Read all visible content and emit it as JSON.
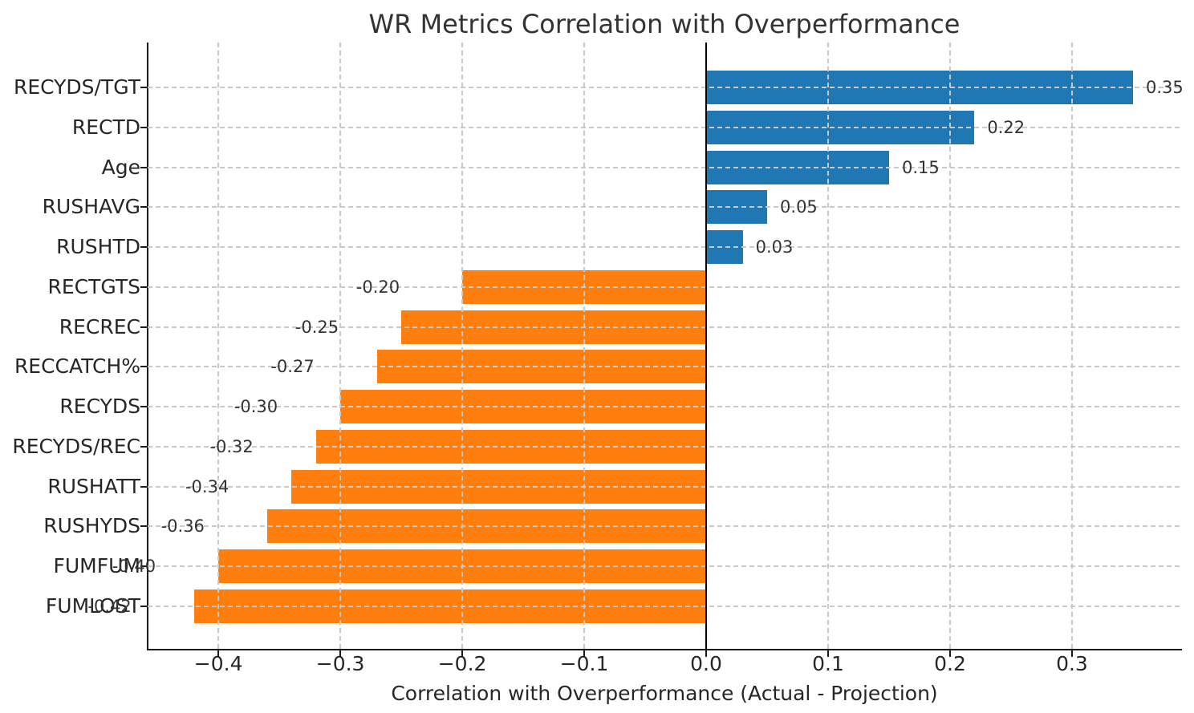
{
  "chart_data": {
    "type": "bar",
    "orientation": "horizontal",
    "title": "WR Metrics Correlation with Overperformance",
    "xlabel": "Correlation with Overperformance (Actual - Projection)",
    "ylabel": "",
    "categories": [
      "RECYDS/TGT",
      "RECTD",
      "Age",
      "RUSHAVG",
      "RUSHTD",
      "RECTGTS",
      "RECREC",
      "RECCATCH%",
      "RECYDS",
      "RECYDS/REC",
      "RUSHATT",
      "RUSHYDS",
      "FUMFUM",
      "FUMLOST"
    ],
    "values": [
      0.35,
      0.22,
      0.15,
      0.05,
      0.03,
      -0.2,
      -0.25,
      -0.27,
      -0.3,
      -0.32,
      -0.34,
      -0.36,
      -0.4,
      -0.42
    ],
    "value_labels": [
      "0.35",
      "0.22",
      "0.15",
      "0.05",
      "0.03",
      "-0.20",
      "-0.25",
      "-0.27",
      "-0.30",
      "-0.32",
      "-0.34",
      "-0.36",
      "-0.40",
      "-0.42"
    ],
    "x_ticks": [
      -0.4,
      -0.3,
      -0.2,
      -0.1,
      0.0,
      0.1,
      0.2,
      0.3
    ],
    "x_tick_labels": [
      "−0.4",
      "−0.3",
      "−0.2",
      "−0.1",
      "0.0",
      "0.1",
      "0.2",
      "0.3"
    ],
    "xlim": [
      -0.458,
      0.3895
    ],
    "grid": true,
    "grid_style": "dashed",
    "legend": "none",
    "positive_color": "#1f77b4",
    "negative_color": "#ff7f0e",
    "gridline_color": "#c9c9c9",
    "zero_line_color": "#000000",
    "spine_color": "#1a1a1a",
    "text_color": "#262626",
    "background_color": "#ffffff"
  }
}
